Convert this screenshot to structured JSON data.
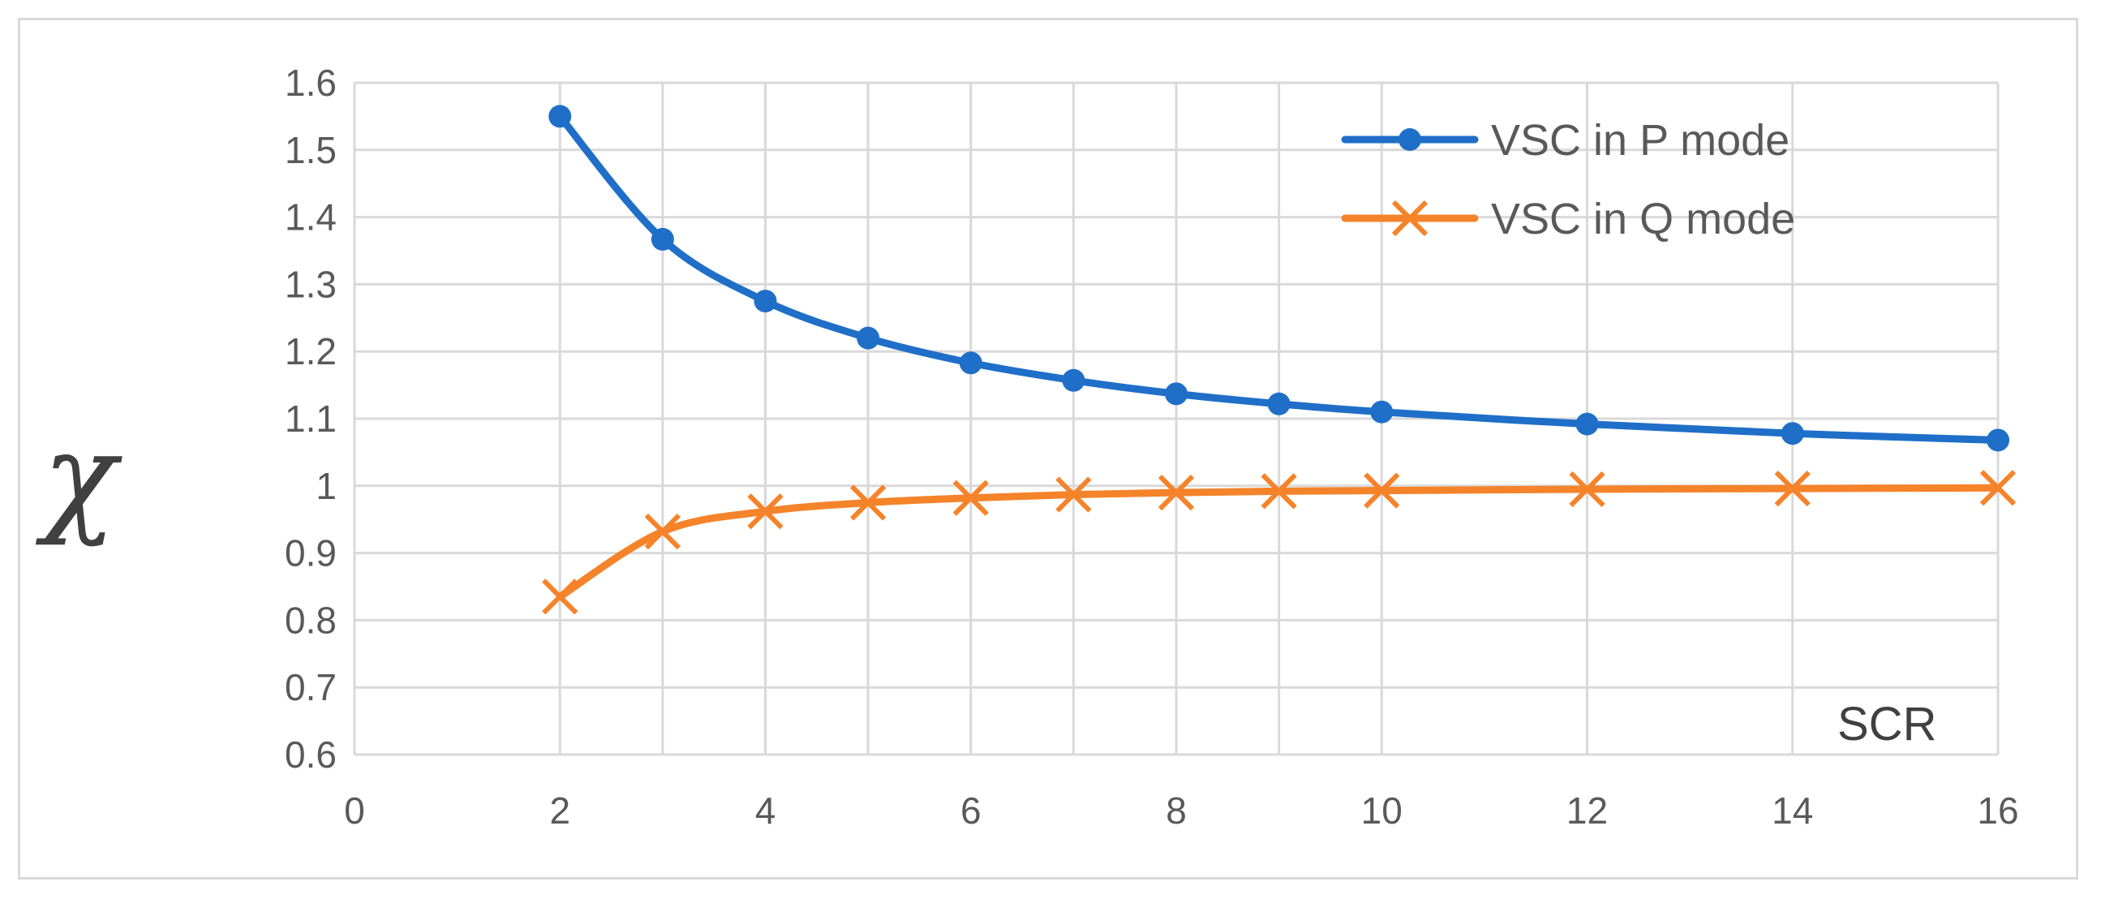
{
  "chart_data": {
    "type": "line",
    "title": "",
    "xlabel": "SCR",
    "ylabel": "χ",
    "xlim": [
      0,
      16
    ],
    "ylim": [
      0.6,
      1.6
    ],
    "x_ticks": [
      "0",
      "2",
      "4",
      "6",
      "8",
      "10",
      "12",
      "14",
      "16"
    ],
    "y_ticks": [
      "0.6",
      "0.7",
      "0.8",
      "0.9",
      "1",
      "1.1",
      "1.2",
      "1.3",
      "1.4",
      "1.5",
      "1.6"
    ],
    "grid": true,
    "legend_position": "top-right",
    "series": [
      {
        "name": "VSC in P mode",
        "color": "#1f6fc8",
        "marker": "circle",
        "x": [
          2,
          3,
          4,
          5,
          6,
          7,
          8,
          9,
          10,
          12,
          14,
          16
        ],
        "y": [
          1.55,
          1.367,
          1.275,
          1.22,
          1.183,
          1.157,
          1.137,
          1.122,
          1.11,
          1.092,
          1.078,
          1.068
        ]
      },
      {
        "name": "VSC in Q mode",
        "color": "#f5832a",
        "marker": "x",
        "x": [
          2,
          3,
          4,
          5,
          6,
          7,
          8,
          9,
          10,
          12,
          14,
          16
        ],
        "y": [
          0.835,
          0.932,
          0.962,
          0.975,
          0.982,
          0.987,
          0.99,
          0.992,
          0.993,
          0.995,
          0.996,
          0.997
        ]
      }
    ]
  }
}
